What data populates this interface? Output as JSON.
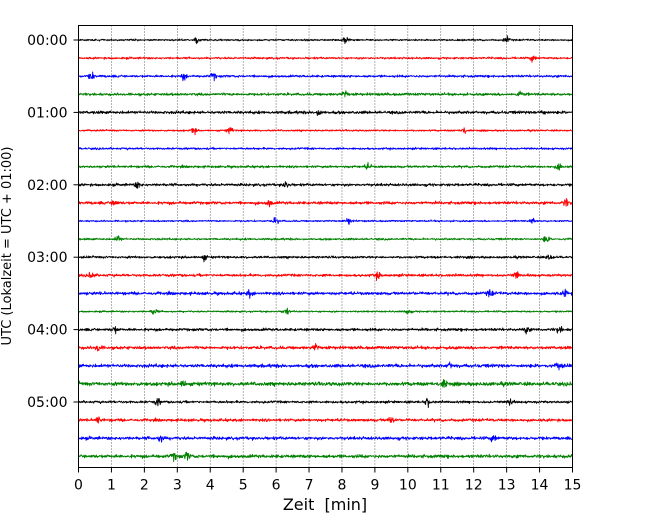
{
  "chart_data": {
    "type": "line",
    "chart_kind": "seismogram helicorder (multi-row trace plot)",
    "xlabel": "Zeit  [min]",
    "ylabel": "UTC (Lokalzeit = UTC + 01:00)",
    "xlim": [
      0,
      15
    ],
    "x_ticks": [
      0,
      1,
      2,
      3,
      4,
      5,
      6,
      7,
      8,
      9,
      10,
      11,
      12,
      13,
      14,
      15
    ],
    "x_tick_labels": [
      "0",
      "1",
      "2",
      "3",
      "4",
      "5",
      "6",
      "7",
      "8",
      "9",
      "10",
      "11",
      "12",
      "13",
      "14",
      "15"
    ],
    "y_tick_labels": [
      "00:00",
      "01:00",
      "02:00",
      "03:00",
      "04:00",
      "05:00"
    ],
    "rows_per_hour": 4,
    "row_count": 24,
    "row_minutes": 15,
    "row_colors_cycle": [
      "#000000",
      "#ff0000",
      "#0000ff",
      "#008000"
    ],
    "vertical_grid": "dotted at each minute",
    "horizontal_grid": false,
    "legend": "none",
    "traces": [
      {
        "row_start": "00:00",
        "color": "#000000",
        "events_min": [
          3.6,
          8.1,
          13.0
        ]
      },
      {
        "row_start": "00:15",
        "color": "#ff0000",
        "events_min": [
          13.8
        ]
      },
      {
        "row_start": "00:30",
        "color": "#0000ff",
        "events_min": [
          0.4,
          3.2,
          4.1
        ]
      },
      {
        "row_start": "00:45",
        "color": "#008000",
        "events_min": [
          8.1,
          13.4
        ]
      },
      {
        "row_start": "01:00",
        "color": "#000000",
        "events_min": [
          7.3,
          14.1
        ]
      },
      {
        "row_start": "01:15",
        "color": "#ff0000",
        "events_min": [
          3.5,
          4.6,
          11.7
        ]
      },
      {
        "row_start": "01:30",
        "color": "#0000ff",
        "events_min": []
      },
      {
        "row_start": "01:45",
        "color": "#008000",
        "events_min": [
          8.8,
          14.6
        ]
      },
      {
        "row_start": "02:00",
        "color": "#000000",
        "events_min": [
          1.8,
          6.3
        ]
      },
      {
        "row_start": "02:15",
        "color": "#ff0000",
        "events_min": [
          1.1,
          5.8,
          14.8
        ]
      },
      {
        "row_start": "02:30",
        "color": "#0000ff",
        "events_min": [
          6.0,
          8.2,
          13.8
        ]
      },
      {
        "row_start": "02:45",
        "color": "#008000",
        "events_min": [
          1.2,
          14.2
        ]
      },
      {
        "row_start": "03:00",
        "color": "#000000",
        "events_min": [
          3.8,
          14.3
        ]
      },
      {
        "row_start": "03:15",
        "color": "#ff0000",
        "events_min": [
          0.4,
          9.1,
          13.3
        ]
      },
      {
        "row_start": "03:30",
        "color": "#0000ff",
        "events_min": [
          5.2,
          12.5,
          14.8
        ]
      },
      {
        "row_start": "03:45",
        "color": "#008000",
        "events_min": [
          2.3,
          6.3,
          10.0
        ]
      },
      {
        "row_start": "04:00",
        "color": "#000000",
        "events_min": [
          1.1,
          13.6,
          14.6
        ]
      },
      {
        "row_start": "04:15",
        "color": "#ff0000",
        "events_min": [
          0.6,
          7.2
        ]
      },
      {
        "row_start": "04:30",
        "color": "#0000ff",
        "events_min": [
          11.3,
          14.6
        ]
      },
      {
        "row_start": "04:45",
        "color": "#008000",
        "events_min": [
          3.2,
          11.1
        ]
      },
      {
        "row_start": "05:00",
        "color": "#000000",
        "events_min": [
          2.4,
          10.6,
          13.1
        ]
      },
      {
        "row_start": "05:15",
        "color": "#ff0000",
        "events_min": [
          0.6,
          9.5
        ]
      },
      {
        "row_start": "05:30",
        "color": "#0000ff",
        "events_min": [
          2.5,
          12.6
        ]
      },
      {
        "row_start": "05:45",
        "color": "#008000",
        "events_min": [
          2.9,
          3.3
        ]
      }
    ]
  }
}
